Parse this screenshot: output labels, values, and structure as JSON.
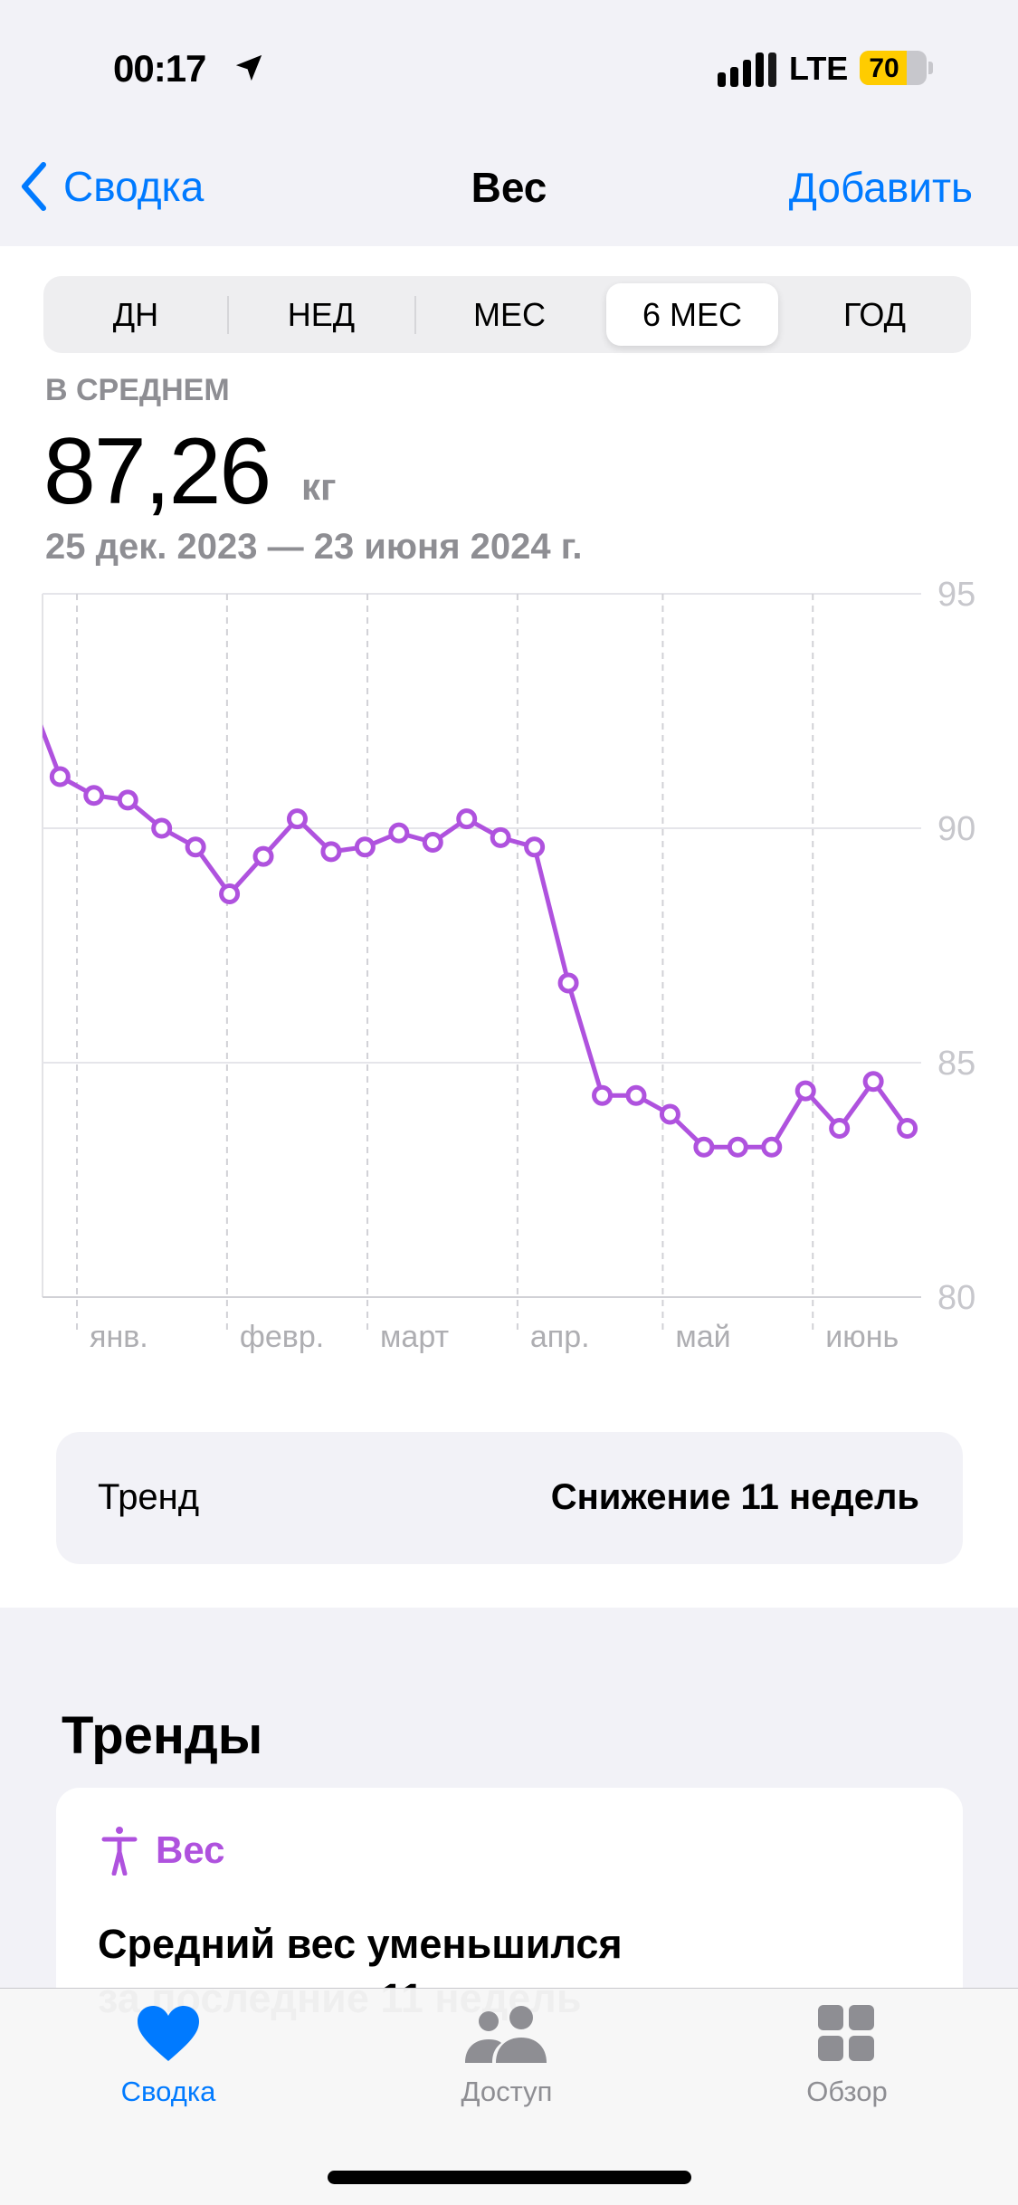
{
  "status_bar": {
    "time": "00:17",
    "network": "LTE",
    "battery": "70",
    "battery_level": 70,
    "battery_color": "#ffcc00",
    "icons": [
      "location-arrow-icon",
      "signal-icon"
    ]
  },
  "nav": {
    "back_label": "Сводка",
    "title": "Вес",
    "add_label": "Добавить",
    "accent": "#007aff"
  },
  "segments": {
    "items": [
      "ДН",
      "НЕД",
      "МЕС",
      "6 МЕС",
      "ГОД"
    ],
    "selected": "6 МЕС"
  },
  "summary": {
    "label": "В СРЕДНЕМ",
    "value": "87,26",
    "unit": "кг",
    "range": "25 дек. 2023 — 23 июня 2024 г."
  },
  "chart_data": {
    "type": "line",
    "color": "#af52de",
    "x_range": [
      "2023-12-25",
      "2024-06-23"
    ],
    "ylim": [
      80,
      95
    ],
    "y_ticks": [
      "95",
      "90",
      "85",
      "80"
    ],
    "x_tick_labels": [
      {
        "date": "2024-01-01",
        "label": "янв."
      },
      {
        "date": "2024-02-01",
        "label": "февр."
      },
      {
        "date": "2024-03-01",
        "label": "март"
      },
      {
        "date": "2024-04-01",
        "label": "апр."
      },
      {
        "date": "2024-05-01",
        "label": "май"
      },
      {
        "date": "2024-06-01",
        "label": "июнь"
      }
    ],
    "grid": true,
    "y_axis_position": "right",
    "prior_point": {
      "week": "2023-12-18",
      "value": 93.0
    },
    "points": [
      {
        "week": "2023-12-25",
        "value": 91.1
      },
      {
        "week": "2024-01-01",
        "value": 90.7
      },
      {
        "week": "2024-01-08",
        "value": 90.6
      },
      {
        "week": "2024-01-15",
        "value": 90.0
      },
      {
        "week": "2024-01-22",
        "value": 89.6
      },
      {
        "week": "2024-01-29",
        "value": 88.6
      },
      {
        "week": "2024-02-05",
        "value": 89.4
      },
      {
        "week": "2024-02-12",
        "value": 90.2
      },
      {
        "week": "2024-02-19",
        "value": 89.5
      },
      {
        "week": "2024-02-26",
        "value": 89.6
      },
      {
        "week": "2024-03-04",
        "value": 89.9
      },
      {
        "week": "2024-03-11",
        "value": 89.7
      },
      {
        "week": "2024-03-18",
        "value": 90.2
      },
      {
        "week": "2024-03-25",
        "value": 89.8
      },
      {
        "week": "2024-04-01",
        "value": 89.6
      },
      {
        "week": "2024-04-08",
        "value": 86.7
      },
      {
        "week": "2024-04-15",
        "value": 84.3
      },
      {
        "week": "2024-04-22",
        "value": 84.3
      },
      {
        "week": "2024-04-29",
        "value": 83.9
      },
      {
        "week": "2024-05-06",
        "value": 83.2
      },
      {
        "week": "2024-05-13",
        "value": 83.2
      },
      {
        "week": "2024-05-20",
        "value": 83.2
      },
      {
        "week": "2024-05-27",
        "value": 84.4
      },
      {
        "week": "2024-06-03",
        "value": 83.6
      },
      {
        "week": "2024-06-10",
        "value": 84.6
      },
      {
        "week": "2024-06-17",
        "value": 83.6
      }
    ]
  },
  "trend_row": {
    "label": "Тренд",
    "value": "Снижение 11 недель"
  },
  "trends": {
    "heading": "Тренды",
    "card": {
      "icon": "figure-icon",
      "title": "Вес",
      "title_color": "#af52de",
      "headline": "Средний вес уменьшился",
      "headline_line2": "за последние 11 недель"
    }
  },
  "tabbar": {
    "items": [
      {
        "label": "Сводка",
        "icon": "heart-icon",
        "active": true
      },
      {
        "label": "Доступ",
        "icon": "people-icon"
      },
      {
        "label": "Обзор",
        "icon": "grid-icon"
      }
    ]
  }
}
